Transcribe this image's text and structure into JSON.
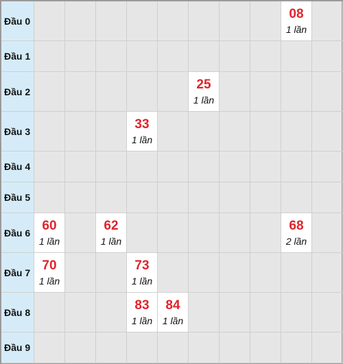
{
  "table": {
    "rows": [
      {
        "label": "Đầu 0",
        "cells": [
          null,
          null,
          null,
          null,
          null,
          null,
          null,
          null,
          {
            "number": "08",
            "count": "1 lần"
          },
          null
        ]
      },
      {
        "label": "Đầu 1",
        "cells": [
          null,
          null,
          null,
          null,
          null,
          null,
          null,
          null,
          null,
          null
        ]
      },
      {
        "label": "Đầu 2",
        "cells": [
          null,
          null,
          null,
          null,
          null,
          {
            "number": "25",
            "count": "1 lần"
          },
          null,
          null,
          null,
          null
        ]
      },
      {
        "label": "Đầu 3",
        "cells": [
          null,
          null,
          null,
          {
            "number": "33",
            "count": "1 lần"
          },
          null,
          null,
          null,
          null,
          null,
          null
        ]
      },
      {
        "label": "Đầu 4",
        "cells": [
          null,
          null,
          null,
          null,
          null,
          null,
          null,
          null,
          null,
          null
        ]
      },
      {
        "label": "Đầu 5",
        "cells": [
          null,
          null,
          null,
          null,
          null,
          null,
          null,
          null,
          null,
          null
        ]
      },
      {
        "label": "Đầu 6",
        "cells": [
          {
            "number": "60",
            "count": "1 lần"
          },
          null,
          {
            "number": "62",
            "count": "1 lần"
          },
          null,
          null,
          null,
          null,
          null,
          {
            "number": "68",
            "count": "2 lần"
          },
          null
        ]
      },
      {
        "label": "Đầu 7",
        "cells": [
          {
            "number": "70",
            "count": "1 lần"
          },
          null,
          null,
          {
            "number": "73",
            "count": "1 lần"
          },
          null,
          null,
          null,
          null,
          null,
          null
        ]
      },
      {
        "label": "Đầu 8",
        "cells": [
          null,
          null,
          null,
          {
            "number": "83",
            "count": "1 lần"
          },
          {
            "number": "84",
            "count": "1 lần"
          },
          null,
          null,
          null,
          null,
          null
        ]
      },
      {
        "label": "Đầu 9",
        "cells": [
          null,
          null,
          null,
          null,
          null,
          null,
          null,
          null,
          null,
          null
        ]
      }
    ]
  }
}
